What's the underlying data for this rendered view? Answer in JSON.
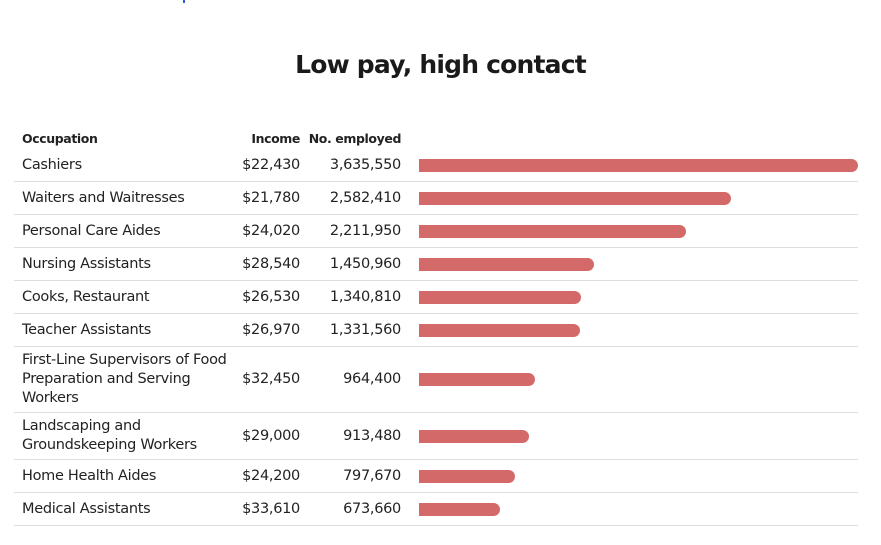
{
  "chart_data": {
    "type": "table",
    "title": "Low pay, high contact",
    "columns": [
      "Occupation",
      "Income",
      "No. employed"
    ],
    "bar_color": "#d4696a",
    "rows": [
      {
        "occupation": "Cashiers",
        "income": "$22,430",
        "employed_label": "3,635,550",
        "employed": 3635550
      },
      {
        "occupation": "Waiters and Waitresses",
        "income": "$21,780",
        "employed_label": "2,582,410",
        "employed": 2582410
      },
      {
        "occupation": "Personal Care Aides",
        "income": "$24,020",
        "employed_label": "2,211,950",
        "employed": 2211950
      },
      {
        "occupation": "Nursing Assistants",
        "income": "$28,540",
        "employed_label": "1,450,960",
        "employed": 1450960
      },
      {
        "occupation": "Cooks, Restaurant",
        "income": "$26,530",
        "employed_label": "1,340,810",
        "employed": 1340810
      },
      {
        "occupation": "Teacher Assistants",
        "income": "$26,970",
        "employed_label": "1,331,560",
        "employed": 1331560
      },
      {
        "occupation": "First-Line Supervisors of Food Preparation and Serving Workers",
        "income": "$32,450",
        "employed_label": "964,400",
        "employed": 964400
      },
      {
        "occupation": "Landscaping and Groundskeeping Workers",
        "income": "$29,000",
        "employed_label": "913,480",
        "employed": 913480
      },
      {
        "occupation": "Home Health Aides",
        "income": "$24,200",
        "employed_label": "797,670",
        "employed": 797670
      },
      {
        "occupation": "Medical Assistants",
        "income": "$33,610",
        "employed_label": "673,660",
        "employed": 673660
      }
    ]
  }
}
